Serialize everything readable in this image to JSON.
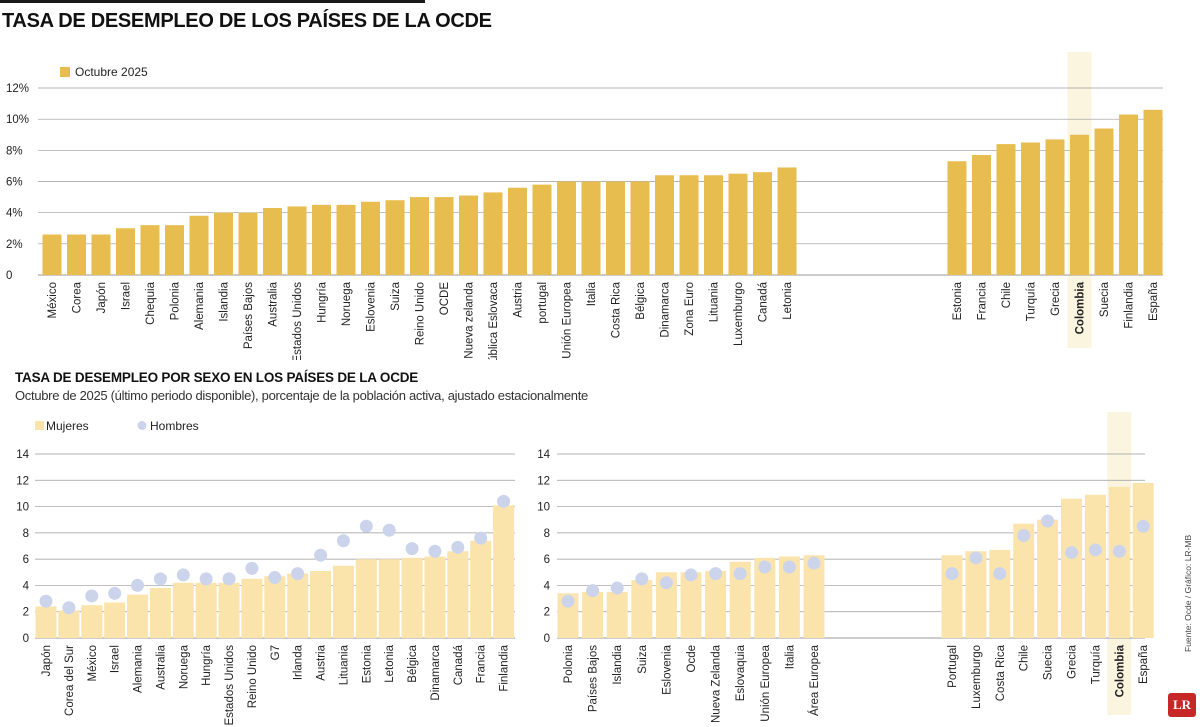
{
  "header": {
    "title": "TASA DE DESEMPLEO DE LOS PAÍSES DE LA OCDE"
  },
  "section2": {
    "title": "TASA DE DESEMPLEO POR SEXO EN LOS PAÍSES DE LA OCDE",
    "caption": "Octubre de 2025 (último periodo disponible), porcentaje de la población activa, ajustado estacionalmente"
  },
  "source": "Fuente: Ocde / Gráfico: LR-MB",
  "logo": "LR",
  "colors": {
    "bar_main": "#e8bd50",
    "bar_women": "#fbe4ac",
    "dot_men": "#ccd4ec",
    "highlight": "#fbf5e0",
    "grid": "#9a9a9a",
    "text": "#222222"
  },
  "chart_data": [
    {
      "type": "bar",
      "title": "TASA DE DESEMPLEO DE LOS PAÍSES DE LA OCDE",
      "legend": [
        "Octubre 2025"
      ],
      "legend_position": "top-left",
      "ylim": [
        0,
        12
      ],
      "yticks": [
        "0",
        "2%",
        "4%",
        "6%",
        "8%",
        "10%",
        "12%"
      ],
      "grid": true,
      "highlight": "Colombia",
      "categories": [
        "México",
        "Corea",
        "Japón",
        "Israel",
        "Chequia",
        "Polonia",
        "Alemania",
        "Islandia",
        "Países Bajos",
        "Australia",
        "Estados Unidos",
        "Hungría",
        "Noruega",
        "Eslovenia",
        "Suiza",
        "Reino Unido",
        "OCDE",
        "Nueva zelanda",
        "República Eslovaca",
        "Austria",
        "portugal",
        "Unión Europea",
        "Italia",
        "Costa Rica",
        "Bélgica",
        "Dinamarca",
        "Zona Euro",
        "Lituania",
        "Luxemburgo",
        "Canadá",
        "Letonia",
        "Estonia",
        "Francia",
        "Chile",
        "Turquía",
        "Grecia",
        "Colombia",
        "Suecia",
        "Finlandia",
        "España"
      ],
      "values": [
        2.6,
        2.6,
        2.6,
        3.0,
        3.2,
        3.2,
        3.8,
        4.0,
        4.0,
        4.3,
        4.4,
        4.5,
        4.5,
        4.7,
        4.8,
        5.0,
        5.0,
        5.1,
        5.3,
        5.6,
        5.8,
        6.0,
        6.0,
        6.0,
        6.0,
        6.4,
        6.4,
        6.4,
        6.5,
        6.6,
        6.9,
        7.3,
        7.7,
        8.4,
        8.5,
        8.7,
        9.0,
        9.4,
        10.3,
        10.6
      ]
    },
    {
      "type": "bar",
      "legend": [
        "Mujeres",
        "Hombres"
      ],
      "legend_position": "top-left",
      "ylim": [
        0,
        14
      ],
      "yticks": [
        "0",
        "2",
        "4",
        "6",
        "8",
        "10",
        "12",
        "14"
      ],
      "grid": true,
      "categories": [
        "Japón",
        "Corea del Sur",
        "México",
        "Israel",
        "Alemania",
        "Australia",
        "Noruega",
        "Hungría",
        "Estados Unidos",
        "Reino Unido",
        "G7",
        "Irlanda",
        "Austria",
        "Lituania",
        "Estonia",
        "Letonia",
        "Bélgica",
        "Dinamarca",
        "Canadá",
        "Francia",
        "Finlandia"
      ],
      "series": [
        {
          "name": "Mujeres",
          "values": [
            2.4,
            2.1,
            2.5,
            2.7,
            3.3,
            3.8,
            4.2,
            4.2,
            4.2,
            4.5,
            4.7,
            4.9,
            5.1,
            5.5,
            6.0,
            6.0,
            6.1,
            6.2,
            6.6,
            7.4,
            10.1
          ]
        },
        {
          "name": "Hombres",
          "values": [
            2.8,
            2.3,
            3.2,
            3.4,
            4.0,
            4.5,
            4.8,
            4.5,
            4.5,
            5.3,
            4.6,
            4.9,
            6.3,
            7.4,
            8.5,
            8.2,
            6.8,
            6.6,
            6.9,
            7.6,
            10.4
          ]
        }
      ]
    },
    {
      "type": "bar",
      "ylim": [
        0,
        14
      ],
      "yticks": [
        "0",
        "2",
        "4",
        "6",
        "8",
        "10",
        "12",
        "14"
      ],
      "grid": true,
      "highlight": "Colombia",
      "categories": [
        "Polonia",
        "Países Bajos",
        "Islandia",
        "Suiza",
        "Eslovenia",
        "Ocde",
        "Nueva Zelanda",
        "Eslovaquia",
        "Unión Europea",
        "Italia",
        "Área Europea",
        "Portugal",
        "Luxemburgo",
        "Costa Rica",
        "Chile",
        "Suecia",
        "Grecia",
        "Turquía",
        "Colombia",
        "España"
      ],
      "series": [
        {
          "name": "Mujeres",
          "values": [
            3.4,
            3.5,
            3.5,
            4.4,
            5.0,
            5.0,
            5.1,
            5.8,
            6.1,
            6.2,
            6.3,
            6.3,
            6.6,
            6.7,
            8.7,
            9.0,
            10.6,
            10.9,
            11.5,
            11.8
          ]
        },
        {
          "name": "Hombres",
          "values": [
            2.8,
            3.6,
            3.8,
            4.5,
            4.2,
            4.8,
            4.9,
            4.9,
            5.4,
            5.4,
            5.7,
            4.9,
            6.1,
            4.9,
            7.8,
            8.9,
            6.5,
            6.7,
            6.6,
            8.5
          ]
        }
      ]
    }
  ]
}
